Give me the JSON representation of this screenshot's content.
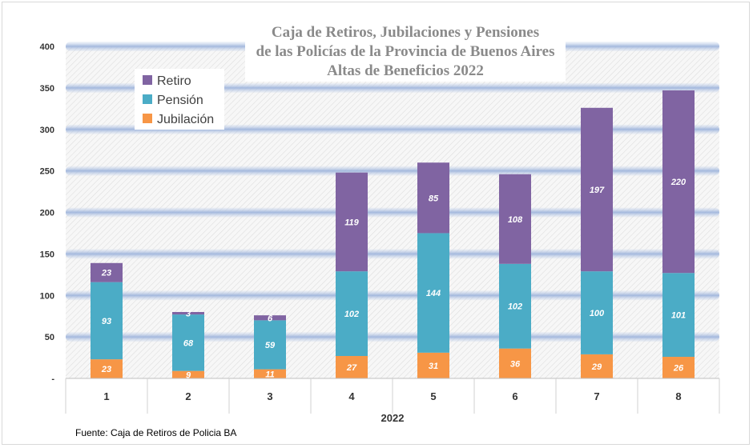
{
  "chart_data": {
    "type": "bar",
    "stacked": true,
    "title": "Caja de Retiros, Jubilaciones y Pensiones\nde las Policías de la Provincia de Buenos Aires\nAltas de Beneficios 2022",
    "title_lines": [
      "Caja de Retiros, Jubilaciones y Pensiones",
      "de las Policías de la Provincia de Buenos Aires",
      "Altas de Beneficios 2022"
    ],
    "xlabel": "2022",
    "ylabel": "",
    "categories": [
      "1",
      "2",
      "3",
      "4",
      "5",
      "6",
      "7",
      "8"
    ],
    "series": [
      {
        "name": "Jubilación",
        "color": "#f79646",
        "values": [
          23,
          9,
          11,
          27,
          31,
          36,
          29,
          26
        ]
      },
      {
        "name": "Pensión",
        "color": "#4bacc6",
        "values": [
          93,
          68,
          59,
          102,
          144,
          102,
          100,
          101
        ]
      },
      {
        "name": "Retiro",
        "color": "#8064a2",
        "values": [
          23,
          3,
          6,
          119,
          85,
          108,
          197,
          220
        ]
      }
    ],
    "legend_order": [
      "Retiro",
      "Pensión",
      "Jubilación"
    ],
    "ylim": [
      0,
      400
    ],
    "yticks": [
      0,
      50,
      100,
      150,
      200,
      250,
      300,
      350,
      400
    ],
    "ytick_labels": [
      "-",
      "50",
      "100",
      "150",
      "200",
      "250",
      "300",
      "350",
      "400"
    ],
    "grid": true,
    "legend_position": "top-left",
    "source": "Fuente: Caja de Retiros de Policia BA"
  }
}
